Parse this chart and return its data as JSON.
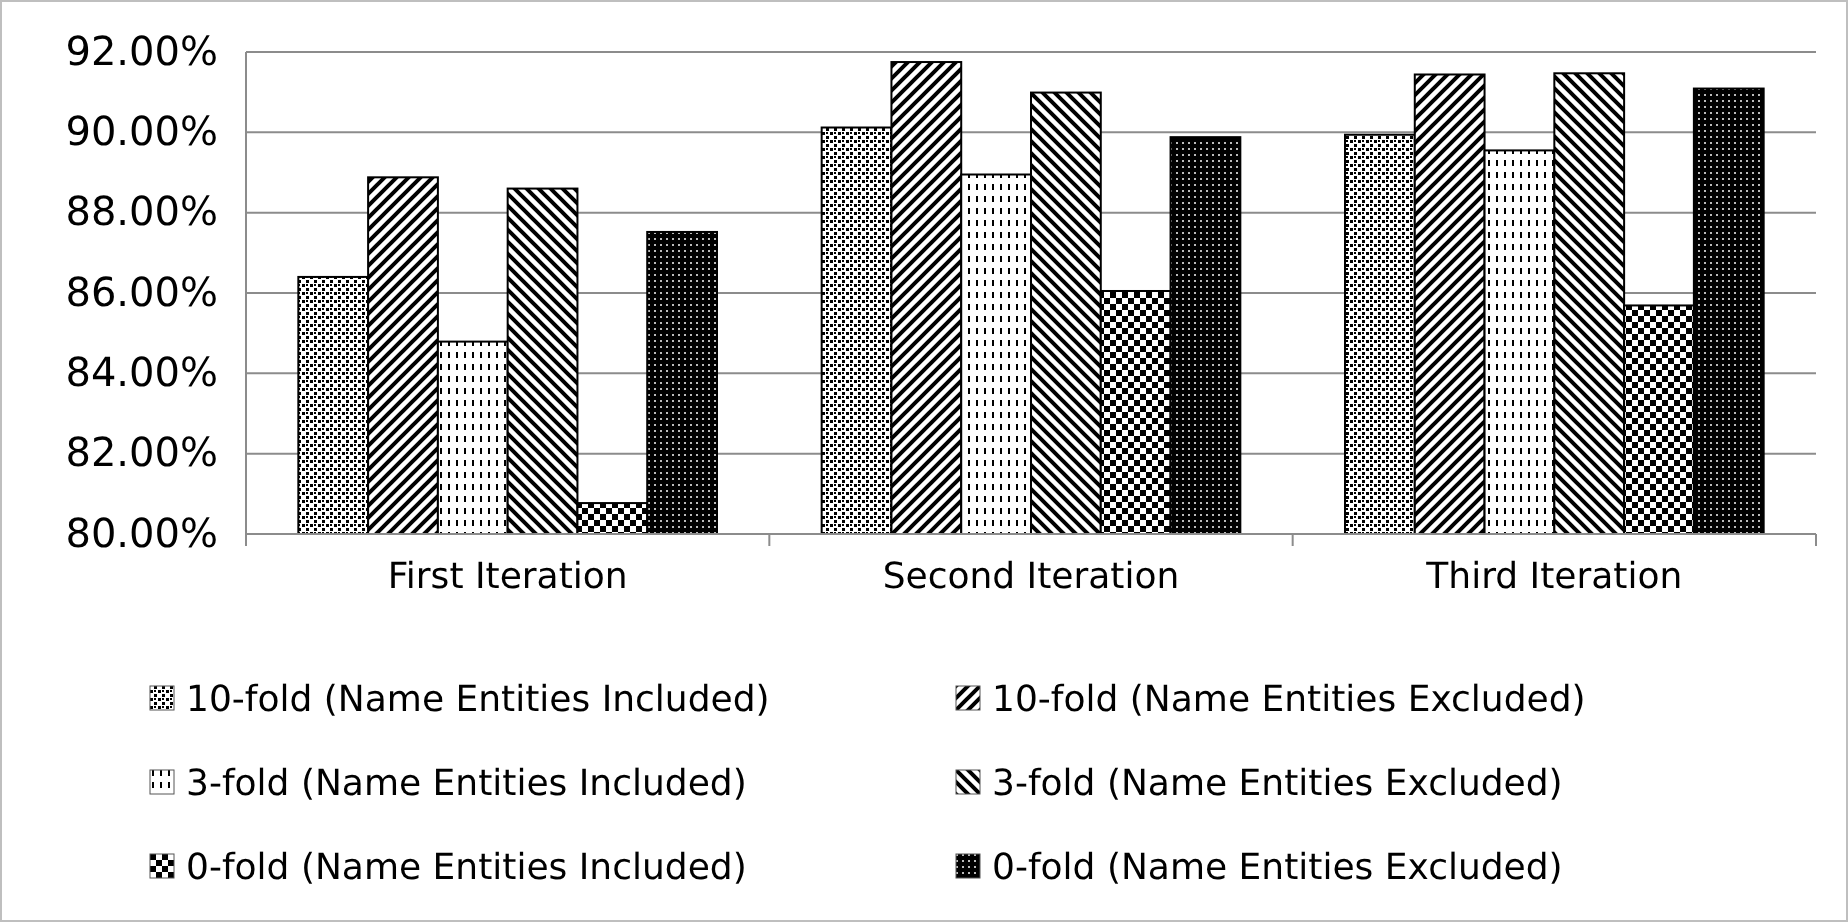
{
  "chart_data": {
    "type": "bar",
    "categories": [
      "First Iteration",
      "Second Iteration",
      "Third Iteration"
    ],
    "series": [
      {
        "name": "10-fold (Name Entities Included)",
        "color": "#000000",
        "values": [
          86.4,
          90.12,
          89.94
        ]
      },
      {
        "name": "10-fold (Name Entities Excluded)",
        "color": "#000000",
        "values": [
          88.88,
          91.75,
          91.44
        ]
      },
      {
        "name": "3-fold (Name Entities Included)",
        "color": "#000000",
        "values": [
          84.79,
          88.95,
          89.55
        ]
      },
      {
        "name": "3-fold (Name Entities Excluded)",
        "color": "#000000",
        "values": [
          88.6,
          90.99,
          91.47
        ]
      },
      {
        "name": "0-fold (Name Entities Included)",
        "color": "#000000",
        "values": [
          80.77,
          86.05,
          85.69
        ]
      },
      {
        "name": "0-fold (Name Entities Excluded)",
        "color": "#000000",
        "values": [
          87.52,
          89.88,
          91.09
        ]
      }
    ],
    "ylim": [
      80,
      92
    ],
    "yticks": [
      {
        "value": 80,
        "label": "80.00%"
      },
      {
        "value": 82,
        "label": "82.00%"
      },
      {
        "value": 84,
        "label": "84.00%"
      },
      {
        "value": 86,
        "label": "86.00%"
      },
      {
        "value": 88,
        "label": "88.00%"
      },
      {
        "value": 90,
        "label": "90.00%"
      },
      {
        "value": 92,
        "label": "92.00%"
      }
    ],
    "grid": "y",
    "legend": "bottom"
  }
}
